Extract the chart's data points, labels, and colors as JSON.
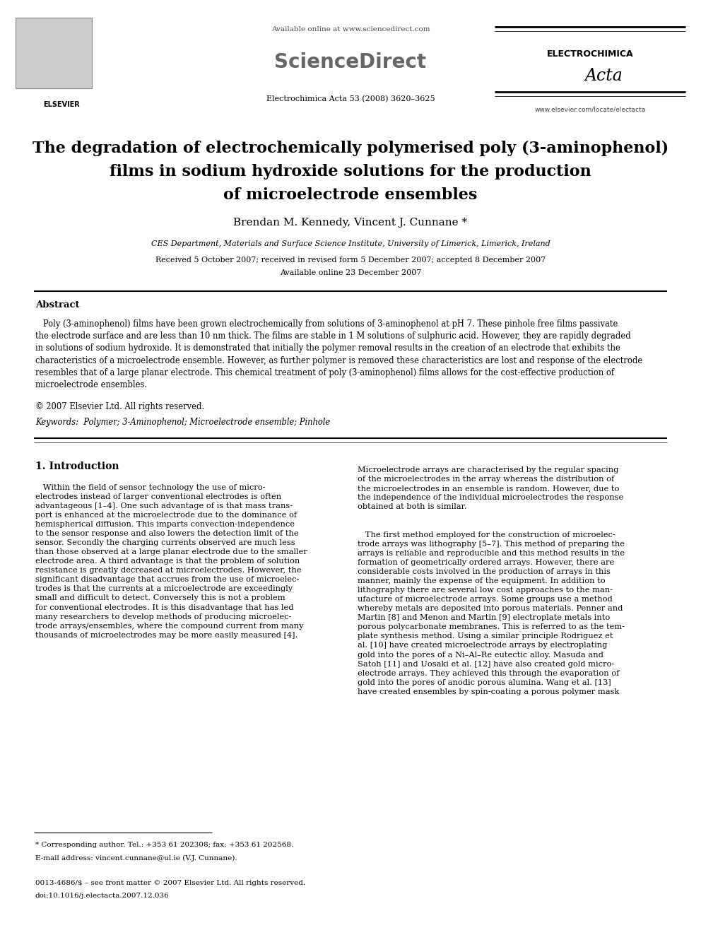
{
  "bg_color": "#ffffff",
  "page_width": 9.92,
  "page_height": 13.23,
  "header": {
    "available_online": "Available online at www.sciencedirect.com",
    "sciencedirect": "ScienceDirect",
    "journal_info": "Electrochimica Acta 53 (2008) 3620–3625",
    "elsevier_text": "ELSEVIER",
    "journal_name": "ELECTROCHIMICA",
    "journal_name2": "Acta",
    "website": "www.elsevier.com/locate/electacta"
  },
  "title": {
    "line1": "The degradation of electrochemically polymerised poly (3-aminophenol)",
    "line2": "films in sodium hydroxide solutions for the production",
    "line3": "of microelectrode ensembles"
  },
  "authors": "Brendan M. Kennedy, Vincent J. Cunnane *",
  "affiliation": "CES Department, Materials and Surface Science Institute, University of Limerick, Limerick, Ireland",
  "received": "Received 5 October 2007; received in revised form 5 December 2007; accepted 8 December 2007",
  "available": "Available online 23 December 2007",
  "abstract_heading": "Abstract",
  "abstract_text": "   Poly (3-aminophenol) films have been grown electrochemically from solutions of 3-aminophenol at pH 7. These pinhole free films passivate\nthe electrode surface and are less than 10 nm thick. The films are stable in 1 M solutions of sulphuric acid. However, they are rapidly degraded\nin solutions of sodium hydroxide. It is demonstrated that initially the polymer removal results in the creation of an electrode that exhibits the\ncharacteristics of a microelectrode ensemble. However, as further polymer is removed these characteristics are lost and response of the electrode\nresembles that of a large planar electrode. This chemical treatment of poly (3-aminophenol) films allows for the cost-effective production of\nmicroelectrode ensembles.",
  "copyright": "© 2007 Elsevier Ltd. All rights reserved.",
  "keywords": "Keywords:  Polymer; 3-Aminophenol; Microelectrode ensemble; Pinhole",
  "section1_heading": "1. Introduction",
  "col1_para1": "   Within the field of sensor technology the use of micro-\nelectrodes instead of larger conventional electrodes is often\nadvantageous [1–4]. One such advantage of is that mass trans-\nport is enhanced at the microelectrode due to the dominance of\nhemispherical diffusion. This imparts convection-independence\nto the sensor response and also lowers the detection limit of the\nsensor. Secondly the charging currents observed are much less\nthan those observed at a large planar electrode due to the smaller\nelectrode area. A third advantage is that the problem of solution\nresistance is greatly decreased at microelectrodes. However, the\nsignificant disadvantage that accrues from the use of microelec-\ntrodes is that the currents at a microelectrode are exceedingly\nsmall and difficult to detect. Conversely this is not a problem\nfor conventional electrodes. It is this disadvantage that has led\nmany researchers to develop methods of producing microelec-\ntrode arrays/ensembles, where the compound current from many\nthousands of microelectrodes may be more easily measured [4].",
  "col2_para1": "Microelectrode arrays are characterised by the regular spacing\nof the microelectrodes in the array whereas the distribution of\nthe microelectrodes in an ensemble is random. However, due to\nthe independence of the individual microelectrodes the response\nobtained at both is similar.",
  "col2_para2": "   The first method employed for the construction of microelec-\ntrode arrays was lithography [5–7]. This method of preparing the\narrays is reliable and reproducible and this method results in the\nformation of geometrically ordered arrays. However, there are\nconsiderable costs involved in the production of arrays in this\nmanner, mainly the expense of the equipment. In addition to\nlithography there are several low cost approaches to the man-\nufacture of microelectrode arrays. Some groups use a method\nwhereby metals are deposited into porous materials. Penner and\nMartin [8] and Menon and Martin [9] electroplate metals into\nporous polycarbonate membranes. This is referred to as the tem-\nplate synthesis method. Using a similar principle Rodriguez et\nal. [10] have created microelectrode arrays by electroplating\ngold into the pores of a Ni–Al–Re eutectic alloy. Masuda and\nSatoh [11] and Uosaki et al. [12] have also created gold micro-\nelectrode arrays. They achieved this through the evaporation of\ngold into the pores of anodic porous alumina. Wang et al. [13]\nhave created ensembles by spin-coating a porous polymer mask",
  "footer_note": "* Corresponding author. Tel.: +353 61 202308; fax: +353 61 202568.",
  "footer_email": "E-mail address: vincent.cunnane@ul.ie (V.J. Cunnane).",
  "footer_issn": "0013-4686/$ – see front matter © 2007 Elsevier Ltd. All rights reserved.",
  "footer_doi": "doi:10.1016/j.electacta.2007.12.036"
}
